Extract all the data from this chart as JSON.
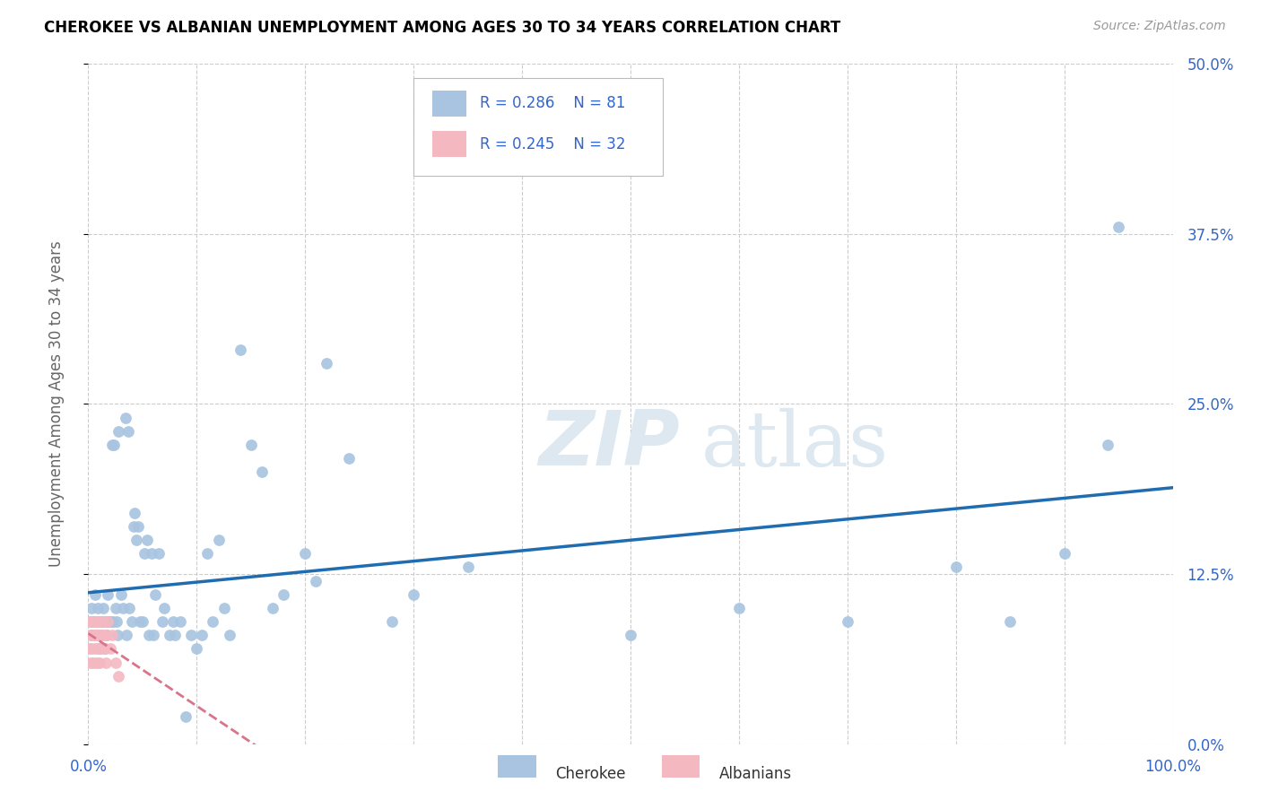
{
  "title": "CHEROKEE VS ALBANIAN UNEMPLOYMENT AMONG AGES 30 TO 34 YEARS CORRELATION CHART",
  "source": "Source: ZipAtlas.com",
  "ylabel_label": "Unemployment Among Ages 30 to 34 years",
  "legend_cherokee": "Cherokee",
  "legend_albanian": "Albanians",
  "cherokee_R": "0.286",
  "cherokee_N": "81",
  "albanian_R": "0.245",
  "albanian_N": "32",
  "cherokee_color": "#a8c4e0",
  "albanian_color": "#f4b8c1",
  "cherokee_line_color": "#1f6cb0",
  "albanian_line_color": "#d9748a",
  "label_color": "#3366cc",
  "grid_color": "#cccccc",
  "watermark_color": "#dde8f0",
  "xlim": [
    0.0,
    1.0
  ],
  "ylim": [
    0.0,
    0.5
  ],
  "x_ticks": [
    0.0,
    1.0
  ],
  "x_tick_labels": [
    "0.0%",
    "100.0%"
  ],
  "y_ticks": [
    0.0,
    0.125,
    0.25,
    0.375,
    0.5
  ],
  "y_tick_labels": [
    "0.0%",
    "12.5%",
    "25.0%",
    "37.5%",
    "50.0%"
  ],
  "cherokee_x": [
    0.002,
    0.003,
    0.004,
    0.005,
    0.006,
    0.007,
    0.008,
    0.009,
    0.01,
    0.011,
    0.012,
    0.013,
    0.014,
    0.015,
    0.016,
    0.017,
    0.018,
    0.019,
    0.02,
    0.022,
    0.023,
    0.024,
    0.025,
    0.026,
    0.027,
    0.028,
    0.03,
    0.032,
    0.034,
    0.035,
    0.037,
    0.038,
    0.04,
    0.042,
    0.043,
    0.044,
    0.046,
    0.048,
    0.05,
    0.052,
    0.054,
    0.056,
    0.058,
    0.06,
    0.062,
    0.065,
    0.068,
    0.07,
    0.075,
    0.078,
    0.08,
    0.085,
    0.09,
    0.095,
    0.1,
    0.105,
    0.11,
    0.115,
    0.12,
    0.125,
    0.13,
    0.14,
    0.15,
    0.16,
    0.17,
    0.18,
    0.2,
    0.21,
    0.22,
    0.24,
    0.28,
    0.3,
    0.35,
    0.5,
    0.6,
    0.7,
    0.8,
    0.85,
    0.9,
    0.94,
    0.95
  ],
  "cherokee_y": [
    0.08,
    0.1,
    0.09,
    0.09,
    0.11,
    0.09,
    0.08,
    0.1,
    0.07,
    0.09,
    0.08,
    0.09,
    0.1,
    0.07,
    0.09,
    0.08,
    0.11,
    0.09,
    0.09,
    0.22,
    0.09,
    0.22,
    0.1,
    0.09,
    0.08,
    0.23,
    0.11,
    0.1,
    0.24,
    0.08,
    0.23,
    0.1,
    0.09,
    0.16,
    0.17,
    0.15,
    0.16,
    0.09,
    0.09,
    0.14,
    0.15,
    0.08,
    0.14,
    0.08,
    0.11,
    0.14,
    0.09,
    0.1,
    0.08,
    0.09,
    0.08,
    0.09,
    0.02,
    0.08,
    0.07,
    0.08,
    0.14,
    0.09,
    0.15,
    0.1,
    0.08,
    0.29,
    0.22,
    0.2,
    0.1,
    0.11,
    0.14,
    0.12,
    0.28,
    0.21,
    0.09,
    0.11,
    0.13,
    0.08,
    0.1,
    0.09,
    0.13,
    0.09,
    0.14,
    0.22,
    0.38
  ],
  "albanian_x": [
    0.001,
    0.001,
    0.002,
    0.002,
    0.003,
    0.003,
    0.004,
    0.004,
    0.005,
    0.005,
    0.006,
    0.006,
    0.007,
    0.007,
    0.008,
    0.008,
    0.009,
    0.009,
    0.01,
    0.01,
    0.011,
    0.012,
    0.013,
    0.014,
    0.015,
    0.016,
    0.017,
    0.018,
    0.02,
    0.022,
    0.025,
    0.028
  ],
  "albanian_y": [
    0.07,
    0.09,
    0.06,
    0.09,
    0.08,
    0.07,
    0.09,
    0.08,
    0.06,
    0.09,
    0.08,
    0.07,
    0.09,
    0.08,
    0.06,
    0.09,
    0.07,
    0.08,
    0.06,
    0.09,
    0.08,
    0.07,
    0.09,
    0.08,
    0.07,
    0.06,
    0.08,
    0.09,
    0.07,
    0.08,
    0.06,
    0.05
  ]
}
